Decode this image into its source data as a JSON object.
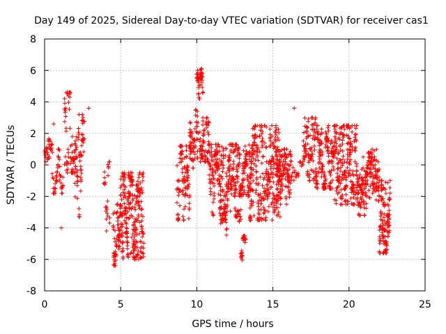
{
  "chart_data": {
    "type": "scatter",
    "title": "Day 149 of 2025, Sidereal Day-to-day VTEC variation (SDTVAR) for receiver cas1",
    "xlabel": "GPS time / hours",
    "ylabel": "SDTVAR / TECUs",
    "xlim": [
      0,
      25
    ],
    "ylim": [
      -8,
      8
    ],
    "xticks": [
      0,
      5,
      10,
      15,
      20,
      25
    ],
    "yticks": [
      -8,
      -6,
      -4,
      -2,
      0,
      2,
      4,
      6,
      8
    ],
    "grid": true,
    "marker": "plus",
    "color": "#ff0000",
    "clusters": [
      {
        "x": [
          0.0,
          0.5
        ],
        "y": [
          0.2,
          2.0
        ],
        "n": 30
      },
      {
        "x": [
          0.5,
          1.2
        ],
        "y": [
          -1.8,
          1.0
        ],
        "n": 45
      },
      {
        "x": [
          1.3,
          2.0
        ],
        "y": [
          -0.5,
          4.6
        ],
        "n": 70
      },
      {
        "x": [
          2.0,
          2.6
        ],
        "y": [
          -3.3,
          3.2
        ],
        "n": 70
      },
      {
        "x": [
          3.9,
          4.3
        ],
        "y": [
          -4.2,
          0.2
        ],
        "n": 25
      },
      {
        "x": [
          4.5,
          5.0
        ],
        "y": [
          -6.4,
          -2.5
        ],
        "n": 70
      },
      {
        "x": [
          5.0,
          6.5
        ],
        "y": [
          -6.0,
          -0.5
        ],
        "n": 260
      },
      {
        "x": [
          8.7,
          9.6
        ],
        "y": [
          -3.5,
          1.2
        ],
        "n": 110
      },
      {
        "x": [
          9.5,
          10.1
        ],
        "y": [
          -0.2,
          3.5
        ],
        "n": 60
      },
      {
        "x": [
          10.0,
          10.4
        ],
        "y": [
          4.2,
          6.2
        ],
        "n": 45
      },
      {
        "x": [
          10.2,
          10.8
        ],
        "y": [
          0.2,
          3.0
        ],
        "n": 70
      },
      {
        "x": [
          10.8,
          12.2
        ],
        "y": [
          -3.2,
          1.3
        ],
        "n": 180
      },
      {
        "x": [
          11.5,
          12.0
        ],
        "y": [
          -5.0,
          -2.0
        ],
        "n": 25
      },
      {
        "x": [
          12.2,
          13.6
        ],
        "y": [
          -2.0,
          1.3
        ],
        "n": 170
      },
      {
        "x": [
          12.5,
          12.9
        ],
        "y": [
          -3.6,
          -1.5
        ],
        "n": 20
      },
      {
        "x": [
          12.9,
          13.2
        ],
        "y": [
          -6.2,
          -4.5
        ],
        "n": 25
      },
      {
        "x": [
          13.5,
          15.5
        ],
        "y": [
          -3.5,
          2.5
        ],
        "n": 300
      },
      {
        "x": [
          15.2,
          16.2
        ],
        "y": [
          -2.5,
          1.0
        ],
        "n": 130
      },
      {
        "x": [
          16.2,
          17.0
        ],
        "y": [
          -1.5,
          0.2
        ],
        "n": 20
      },
      {
        "x": [
          17.0,
          17.8
        ],
        "y": [
          -1.0,
          3.0
        ],
        "n": 90
      },
      {
        "x": [
          17.8,
          19.0
        ],
        "y": [
          -1.5,
          2.5
        ],
        "n": 150
      },
      {
        "x": [
          19.0,
          20.5
        ],
        "y": [
          -2.5,
          2.5
        ],
        "n": 220
      },
      {
        "x": [
          20.5,
          21.2
        ],
        "y": [
          -3.2,
          0.5
        ],
        "n": 90
      },
      {
        "x": [
          21.2,
          22.0
        ],
        "y": [
          -2.3,
          1.0
        ],
        "n": 100
      },
      {
        "x": [
          22.0,
          22.7
        ],
        "y": [
          -5.6,
          -1.0
        ],
        "n": 120
      }
    ],
    "isolated_points": [
      {
        "x": 1.1,
        "y": -4.0
      },
      {
        "x": 2.9,
        "y": 3.6
      },
      {
        "x": 16.4,
        "y": 3.6
      },
      {
        "x": 0.6,
        "y": 2.6
      },
      {
        "x": 11.0,
        "y": -3.0
      }
    ]
  }
}
